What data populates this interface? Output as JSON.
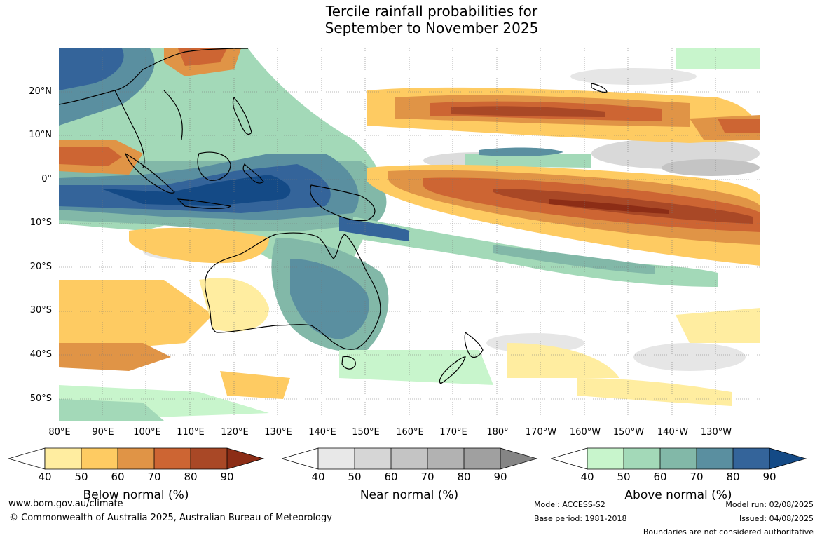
{
  "title_line1": "Tercile rainfall probabilities for",
  "title_line2": "September to November 2025",
  "latitude_labels": [
    "20°N",
    "10°N",
    "0°",
    "10°S",
    "20°S",
    "30°S",
    "40°S",
    "50°S"
  ],
  "longitude_labels": [
    "80°E",
    "90°E",
    "100°E",
    "110°E",
    "120°E",
    "130°E",
    "140°E",
    "150°E",
    "160°E",
    "170°E",
    "180°",
    "170°W",
    "160°W",
    "150°W",
    "140°W",
    "130°W"
  ],
  "legends": [
    {
      "title": "Below normal (%)",
      "ticks": [
        "40",
        "50",
        "60",
        "70",
        "80",
        "90"
      ],
      "colors": [
        "#ffeda0",
        "#fecb62",
        "#e09446",
        "#cd6533",
        "#a94826",
        "#8c2d16"
      ]
    },
    {
      "title": "Near normal (%)",
      "ticks": [
        "40",
        "50",
        "60",
        "70",
        "80",
        "90"
      ],
      "colors": [
        "#e8e8e8",
        "#d6d6d6",
        "#c4c4c4",
        "#b2b2b2",
        "#a0a0a0",
        "#858585"
      ]
    },
    {
      "title": "Above normal (%)",
      "ticks": [
        "40",
        "50",
        "60",
        "70",
        "80",
        "90"
      ],
      "colors": [
        "#c8f5cc",
        "#a3d9b8",
        "#82b8a8",
        "#5a8fa0",
        "#34649a",
        "#144a86"
      ]
    }
  ],
  "footer": {
    "website": "www.bom.gov.au/climate",
    "copyright": "© Commonwealth of Australia 2025, Australian Bureau of Meteorology",
    "model": "Model: ACCESS-S2",
    "base_period": "Base period: 1981-2018",
    "model_run": "Model run: 02/08/2025",
    "issued": "Issued: 04/08/2025",
    "disclaimer": "Boundaries are not considered authoritative"
  }
}
